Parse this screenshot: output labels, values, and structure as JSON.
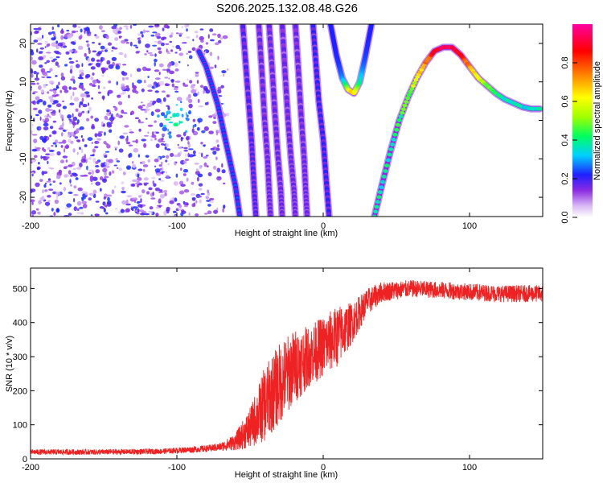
{
  "title": "S206.2025.132.08.48.G26",
  "chart_data": [
    {
      "type": "heatmap",
      "xlabel": "Height of straight line (km)",
      "ylabel": "Frequency (Hz)",
      "xlim": [
        -200,
        150
      ],
      "ylim": [
        -25,
        25
      ],
      "x_ticks": [
        -200,
        -100,
        0,
        100
      ],
      "y_ticks": [
        -20,
        -10,
        0,
        10,
        20
      ],
      "grid": false,
      "colorbar": {
        "label": "Normalized spectral amplitude",
        "range": [
          0,
          1
        ],
        "ticks": [
          0.0,
          0.2,
          0.4,
          0.6,
          0.8
        ],
        "colors": [
          "#ffffff",
          "#c090f0",
          "#7b00e0",
          "#2020ff",
          "#00d0ff",
          "#00ff60",
          "#a0ff00",
          "#ffff00",
          "#ff8000",
          "#ff0000",
          "#ff00a0"
        ]
      },
      "ridges": [
        {
          "x": [
            -85,
            -80,
            -76,
            -72,
            -68,
            -64,
            -60,
            -57
          ],
          "y": [
            18,
            14,
            9,
            4,
            -3,
            -10,
            -17,
            -25
          ],
          "amplitude": 0.25
        },
        {
          "x": [
            -55,
            -53,
            -51,
            -49,
            -48,
            -47,
            -46
          ],
          "y": [
            25,
            15,
            5,
            -5,
            -12,
            -19,
            -25
          ],
          "amplitude": 0.2
        },
        {
          "x": [
            -44,
            -42,
            -40,
            -38,
            -37,
            -36
          ],
          "y": [
            25,
            13,
            0,
            -10,
            -18,
            -25
          ],
          "amplitude": 0.18
        },
        {
          "x": [
            -37,
            -35,
            -33,
            -31,
            -29,
            -28
          ],
          "y": [
            25,
            14,
            2,
            -9,
            -18,
            -25
          ],
          "amplitude": 0.18
        },
        {
          "x": [
            -28,
            -26,
            -24,
            -22,
            -20,
            -19
          ],
          "y": [
            25,
            12,
            0,
            -10,
            -18,
            -25
          ],
          "amplitude": 0.18
        },
        {
          "x": [
            -19,
            -17,
            -15,
            -13,
            -12,
            -11
          ],
          "y": [
            25,
            13,
            1,
            -10,
            -18,
            -25
          ],
          "amplitude": 0.18
        },
        {
          "x": [
            -7,
            -5,
            -3,
            0,
            2,
            4
          ],
          "y": [
            25,
            15,
            5,
            -5,
            -15,
            -25
          ],
          "amplitude": 0.22
        },
        {
          "x": [
            5,
            9,
            13,
            17,
            21,
            25,
            29,
            33
          ],
          "y": [
            25,
            17,
            11,
            8,
            7,
            10,
            17,
            25
          ],
          "amplitude": 0.55
        },
        {
          "x": [
            35,
            40,
            46,
            52,
            58,
            64,
            70,
            76,
            82,
            88,
            94,
            100,
            106,
            112,
            118,
            124,
            130,
            136,
            142,
            148
          ],
          "y": [
            -25,
            -17,
            -8,
            0,
            6,
            11,
            15,
            18,
            19,
            19,
            17,
            14,
            11,
            9,
            7,
            5.5,
            4.5,
            3.5,
            3,
            3
          ],
          "amplitude": 0.85
        }
      ],
      "scatter_cluster": {
        "x_range": [
          -200,
          -65
        ],
        "y_range": [
          -25,
          25
        ],
        "focus": [
          -100,
          0
        ],
        "amplitude": 0.2
      }
    },
    {
      "type": "line",
      "xlabel": "Height of straight line (km)",
      "ylabel": "SNR (10 * v/v)",
      "xlim": [
        -200,
        150
      ],
      "ylim": [
        0,
        560
      ],
      "x_ticks": [
        -200,
        -100,
        0,
        100
      ],
      "y_ticks": [
        0,
        100,
        200,
        300,
        400,
        500
      ],
      "grid": false,
      "color": "#ee2222",
      "envelope": {
        "x": [
          -200,
          -150,
          -110,
          -80,
          -70,
          -60,
          -50,
          -40,
          -30,
          -20,
          -10,
          0,
          10,
          20,
          30,
          40,
          60,
          80,
          100,
          120,
          150
        ],
        "mean": [
          20,
          20,
          22,
          30,
          35,
          50,
          90,
          160,
          220,
          270,
          300,
          330,
          360,
          400,
          460,
          490,
          500,
          495,
          490,
          485,
          485
        ],
        "noise": [
          8,
          8,
          8,
          10,
          12,
          25,
          60,
          110,
          120,
          110,
          90,
          90,
          90,
          60,
          40,
          30,
          25,
          25,
          25,
          25,
          25
        ]
      }
    }
  ]
}
